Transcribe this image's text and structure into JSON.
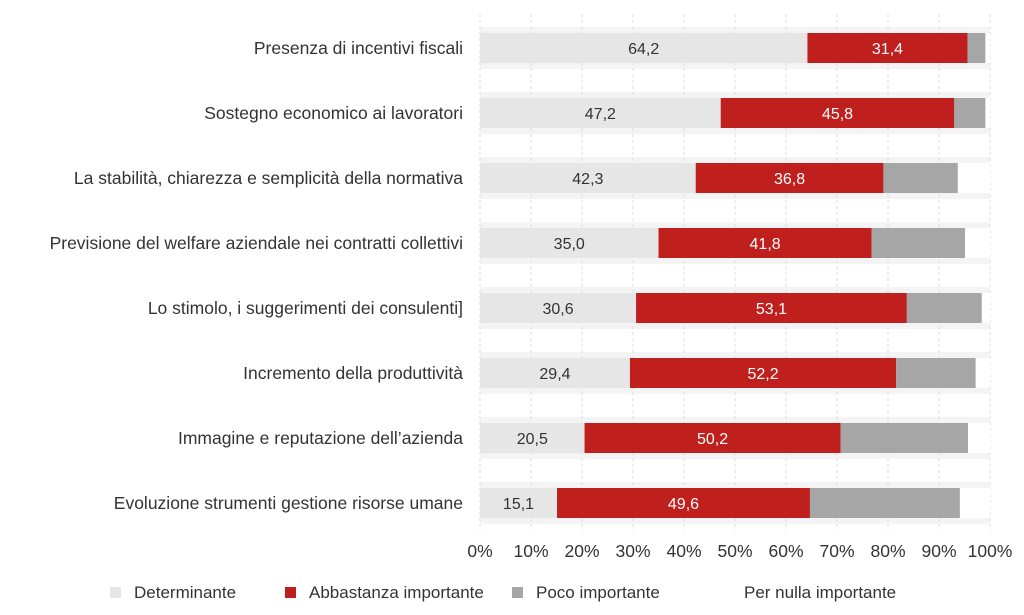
{
  "chart_data": {
    "type": "bar",
    "orientation": "horizontal",
    "stacked": true,
    "categories": [
      "Presenza di incentivi fiscali",
      "Sostegno economico ai lavoratori",
      "La stabilità, chiarezza e semplicità della normativa",
      "Previsione del welfare aziendale nei contratti collettivi",
      "Lo stimolo, i suggerimenti dei consulenti]",
      "Incremento della produttività",
      "Immagine e reputazione dell’azienda",
      "Evoluzione strumenti gestione risorse umane"
    ],
    "series": [
      {
        "name": "Determinante",
        "color": "#e6e6e6",
        "values": [
          64.2,
          47.2,
          42.3,
          35.0,
          30.6,
          29.4,
          20.5,
          15.1
        ],
        "labels": [
          "64,2",
          "47,2",
          "42,3",
          "35,0",
          "30,6",
          "29,4",
          "20,5",
          "15,1"
        ]
      },
      {
        "name": "Abbastanza importante",
        "color": "#c0201d",
        "values": [
          31.4,
          45.8,
          36.8,
          41.8,
          53.1,
          52.2,
          50.2,
          49.6
        ],
        "labels": [
          "31,4",
          "45,8",
          "36,8",
          "41,8",
          "53,1",
          "52,2",
          "50,2",
          "49,6"
        ]
      },
      {
        "name": "Poco importante",
        "color": "#a6a6a6",
        "values": [
          3.5,
          6.1,
          14.6,
          18.3,
          14.7,
          15.6,
          25.0,
          29.4
        ],
        "labels": []
      },
      {
        "name": "Per nulla importante",
        "color": "#ffffff",
        "values": [
          0.9,
          0.9,
          6.3,
          4.9,
          1.6,
          2.8,
          4.3,
          5.9
        ],
        "labels": []
      }
    ],
    "xlim": [
      0,
      100
    ],
    "x_ticks": [
      "0%",
      "10%",
      "20%",
      "30%",
      "40%",
      "50%",
      "60%",
      "70%",
      "80%",
      "90%",
      "100%"
    ],
    "grid": true,
    "legend_position": "bottom",
    "title": "",
    "xlabel": "",
    "ylabel": ""
  }
}
